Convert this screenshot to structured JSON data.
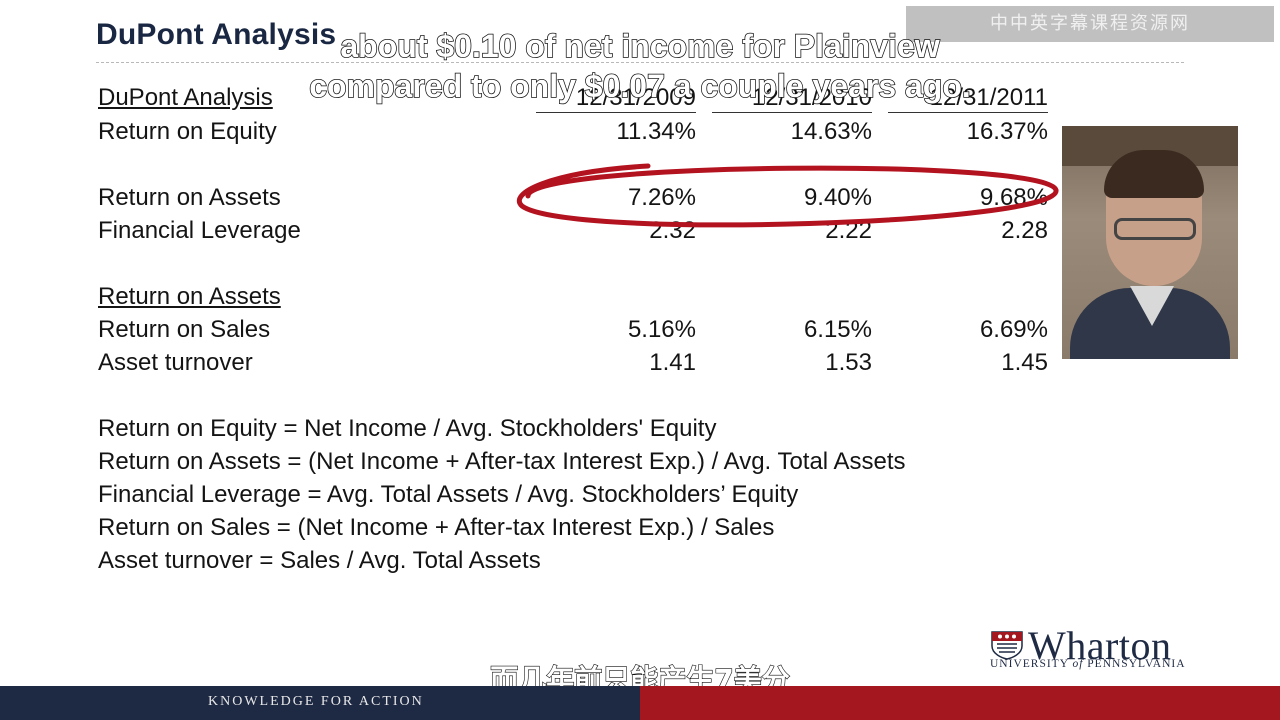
{
  "slide": {
    "title": "DuPont Analysis",
    "section_label": "DuPont Analysis",
    "columns": [
      "12/31/2009",
      "12/31/2010",
      "12/31/2011"
    ],
    "rows": {
      "roe": {
        "label": "Return on Equity",
        "values": [
          "11.34%",
          "14.63%",
          "16.37%"
        ]
      },
      "roa": {
        "label": "Return on Assets",
        "values": [
          "7.26%",
          "9.40%",
          "9.68%"
        ]
      },
      "leverage": {
        "label": "Financial Leverage",
        "values": [
          "2.32",
          "2.22",
          "2.28"
        ]
      },
      "roa_header": {
        "label": "Return on Assets"
      },
      "ros": {
        "label": "Return on Sales",
        "values": [
          "5.16%",
          "6.15%",
          "6.69%"
        ]
      },
      "turnover": {
        "label": "Asset turnover",
        "values": [
          "1.41",
          "1.53",
          "1.45"
        ]
      }
    },
    "formulas": [
      "Return on Equity = Net Income / Avg. Stockholders' Equity",
      "Return on Assets = (Net Income + After-tax Interest Exp.) / Avg. Total Assets",
      "Financial Leverage = Avg. Total Assets / Avg. Stockholders’ Equity",
      "Return on Sales =  (Net Income + After-tax Interest Exp.) / Sales",
      "Asset turnover = Sales / Avg. Total Assets"
    ],
    "highlight_color": "#b3121f"
  },
  "captions": {
    "english_line1": "about $0.10 of net income for Plainview",
    "english_line2": "compared to only $0.07 a couple years ago.",
    "chinese": "而几年前只能产生7美分"
  },
  "watermark": "中中英字幕课程资源网",
  "branding": {
    "logo_name": "Wharton",
    "logo_sub_prefix": "UNIVERSITY ",
    "logo_sub_of": "of",
    "logo_sub_suffix": " PENNSYLVANIA",
    "tagline": "KNOWLEDGE FOR ACTION",
    "navy": "#1e2a44",
    "red": "#a5171f"
  }
}
